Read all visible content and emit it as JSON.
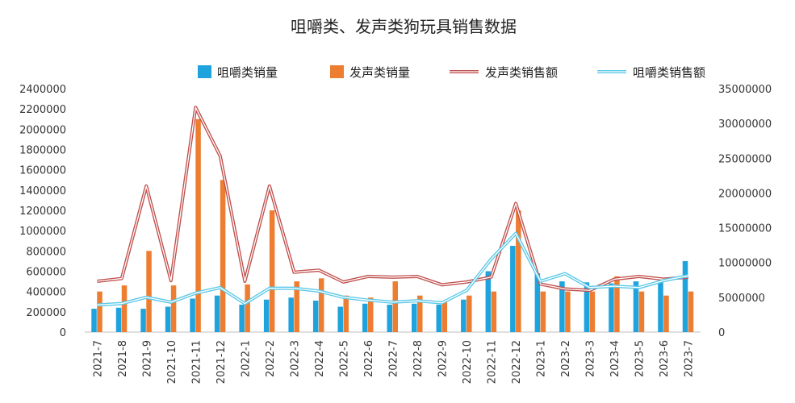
{
  "chart_data": {
    "type": "bar+line",
    "title": "咀嚼类、发声类狗玩具销售数据",
    "categories": [
      "2021-7",
      "2021-8",
      "2021-9",
      "2021-10",
      "2021-11",
      "2021-12",
      "2022-1",
      "2022-2",
      "2022-3",
      "2022-4",
      "2022-5",
      "2022-6",
      "2022-7",
      "2022-8",
      "2022-9",
      "2022-10",
      "2022-11",
      "2022-12",
      "2023-1",
      "2023-2",
      "2023-3",
      "2023-4",
      "2023-5",
      "2023-6",
      "2023-7"
    ],
    "left_axis": {
      "min": 0,
      "max": 2400000,
      "ticks": [
        "0",
        "200000",
        "400000",
        "600000",
        "800000",
        "1000000",
        "1200000",
        "1400000",
        "1600000",
        "1800000",
        "2000000",
        "2200000",
        "2400000"
      ]
    },
    "right_axis": {
      "min": 0,
      "max": 35000000,
      "ticks": [
        "0",
        "5000000",
        "10000000",
        "15000000",
        "20000000",
        "25000000",
        "30000000",
        "35000000"
      ]
    },
    "legend_position": "top",
    "gridlines": false,
    "series": [
      {
        "name": "咀嚼类销量",
        "kind": "bar",
        "axis": "left",
        "color": "#1fa3dc",
        "values": [
          230000,
          240000,
          230000,
          250000,
          330000,
          360000,
          270000,
          320000,
          340000,
          310000,
          250000,
          280000,
          270000,
          280000,
          270000,
          320000,
          600000,
          850000,
          580000,
          500000,
          490000,
          480000,
          500000,
          530000,
          700000
        ]
      },
      {
        "name": "发声类销量",
        "kind": "bar",
        "axis": "left",
        "color": "#ed7d31",
        "values": [
          400000,
          460000,
          800000,
          460000,
          2100000,
          1500000,
          470000,
          1200000,
          500000,
          530000,
          360000,
          340000,
          500000,
          360000,
          310000,
          360000,
          400000,
          1200000,
          400000,
          400000,
          400000,
          550000,
          400000,
          360000,
          400000
        ]
      },
      {
        "name": "发声类销售额",
        "kind": "line",
        "axis": "right",
        "color": "#c0504d",
        "values": [
          7300000,
          7700000,
          21000000,
          7400000,
          32300000,
          25300000,
          7300000,
          21000000,
          8600000,
          8900000,
          7200000,
          8000000,
          7900000,
          8000000,
          6800000,
          7200000,
          7900000,
          18500000,
          6900000,
          6200000,
          6000000,
          7600000,
          8000000,
          7600000,
          7900000
        ]
      },
      {
        "name": "咀嚼类销售额",
        "kind": "line",
        "axis": "right",
        "color": "#5bc8e8",
        "values": [
          3900000,
          4100000,
          5000000,
          4300000,
          5600000,
          6400000,
          4100000,
          6300000,
          6300000,
          5900000,
          5000000,
          4600000,
          4300000,
          4500000,
          4200000,
          6000000,
          10500000,
          14200000,
          7300000,
          8400000,
          6400000,
          6600000,
          6400000,
          7400000,
          8100000
        ]
      }
    ]
  }
}
